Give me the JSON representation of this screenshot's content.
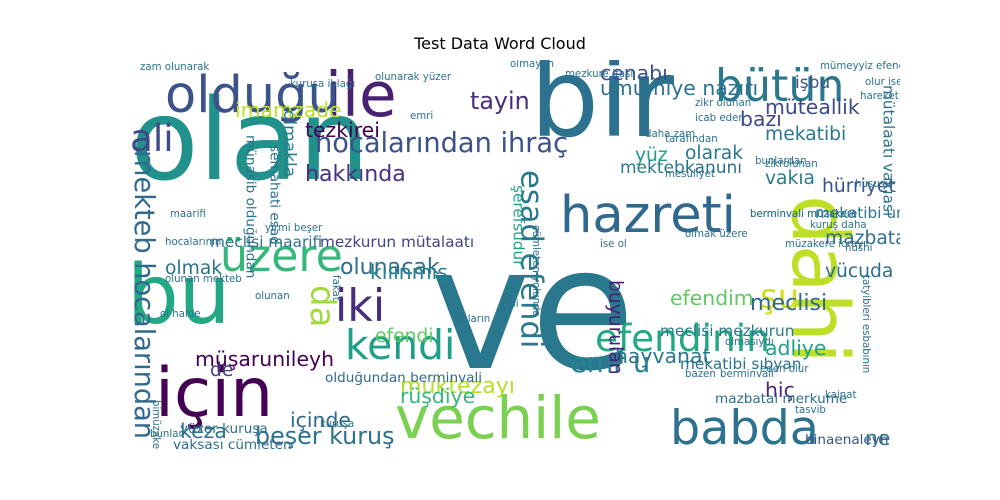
{
  "chart_data": {
    "type": "wordcloud",
    "title": "Test Data Word Cloud",
    "words": [
      {
        "text": "ve",
        "size": 100,
        "color": "#2a788e"
      },
      {
        "text": "olan",
        "size": 66,
        "color": "#21918c"
      },
      {
        "text": "bir",
        "size": 64,
        "color": "#2c728e"
      },
      {
        "text": "bu",
        "size": 48,
        "color": "#22a884"
      },
      {
        "text": "dahi",
        "size": 46,
        "color": "#bddf26"
      },
      {
        "text": "için",
        "size": 40,
        "color": "#440154"
      },
      {
        "text": "ile",
        "size": 36,
        "color": "#482173"
      },
      {
        "text": "vechile",
        "size": 34,
        "color": "#7ad151"
      },
      {
        "text": "olduğu",
        "size": 30,
        "color": "#3b528b"
      },
      {
        "text": "hazreti",
        "size": 30,
        "color": "#31688e"
      },
      {
        "text": "babda",
        "size": 28,
        "color": "#2c728e"
      },
      {
        "text": "iki",
        "size": 26,
        "color": "#472d7b"
      },
      {
        "text": "üzere",
        "size": 26,
        "color": "#35b779"
      },
      {
        "text": "bütün",
        "size": 26,
        "color": "#2a788e"
      },
      {
        "text": "kendi",
        "size": 24,
        "color": "#1f9e89"
      },
      {
        "text": "ali",
        "size": 22,
        "color": "#3e4989"
      },
      {
        "text": "efendinin",
        "size": 22,
        "color": "#22a884"
      },
      {
        "text": "esad efendi",
        "size": 18,
        "color": "#2a788e"
      },
      {
        "text": "da",
        "size": 20,
        "color": "#a0da39"
      },
      {
        "text": "şu",
        "size": 20,
        "color": "#d0e11c"
      },
      {
        "text": "mekteb hocalarından",
        "size": 16,
        "color": "#31688e"
      },
      {
        "text": "hocalarından ihraç",
        "size": 16,
        "color": "#3b528b"
      },
      {
        "text": "emr u",
        "size": 16,
        "color": "#26828e"
      },
      {
        "text": "tayin",
        "size": 14,
        "color": "#472d7b"
      },
      {
        "text": "beşer kuruş",
        "size": 14,
        "color": "#2c728e"
      },
      {
        "text": "hakkında",
        "size": 13,
        "color": "#46327e"
      },
      {
        "text": "olunacak",
        "size": 13,
        "color": "#2e6e8e"
      },
      {
        "text": "cenabı",
        "size": 12,
        "color": "#3b528b"
      },
      {
        "text": "umumiye nazırı",
        "size": 12,
        "color": "#2c728e"
      },
      {
        "text": "müteallik",
        "size": 12,
        "color": "#3e4989"
      },
      {
        "text": "bazı",
        "size": 12,
        "color": "#414487"
      },
      {
        "text": "mekatibi",
        "size": 11,
        "color": "#2a788e"
      },
      {
        "text": "tezkirei",
        "size": 12,
        "color": "#440154"
      },
      {
        "text": "imamzade",
        "size": 12,
        "color": "#bddf26"
      },
      {
        "text": "meclisi",
        "size": 13,
        "color": "#31688e"
      },
      {
        "text": "müşarunileyh",
        "size": 12,
        "color": "#440154"
      },
      {
        "text": "muktezayı",
        "size": 13,
        "color": "#b5de2b"
      },
      {
        "text": "rüşdiye",
        "size": 12,
        "color": "#35b779"
      },
      {
        "text": "hayvanat",
        "size": 12,
        "color": "#2a788e"
      },
      {
        "text": "efendim",
        "size": 12,
        "color": "#5ec962"
      },
      {
        "text": "hiç",
        "size": 12,
        "color": "#482878"
      },
      {
        "text": "adliye",
        "size": 12,
        "color": "#1f9e89"
      },
      {
        "text": "ne",
        "size": 12,
        "color": "#2a788e"
      },
      {
        "text": "keza",
        "size": 12,
        "color": "#2c728e"
      },
      {
        "text": "içinde",
        "size": 12,
        "color": "#31688e"
      },
      {
        "text": "kılınmış",
        "size": 12,
        "color": "#26828e"
      },
      {
        "text": "olmak",
        "size": 11,
        "color": "#2c728e"
      },
      {
        "text": "efendi",
        "size": 11,
        "color": "#5ec962"
      },
      {
        "text": "de",
        "size": 11,
        "color": "#443a83"
      },
      {
        "text": "buyurulan",
        "size": 11,
        "color": "#482173"
      },
      {
        "text": "mazbata",
        "size": 11,
        "color": "#2e6e8e"
      },
      {
        "text": "vücuda",
        "size": 11,
        "color": "#2e6e8e"
      },
      {
        "text": "hürriyet",
        "size": 11,
        "color": "#3b528b"
      },
      {
        "text": "vakıa",
        "size": 11,
        "color": "#287c8e"
      },
      {
        "text": "olarak",
        "size": 11,
        "color": "#2a788e"
      },
      {
        "text": "yüz",
        "size": 11,
        "color": "#1f9e89"
      },
      {
        "text": "kanunı",
        "size": 10,
        "color": "#2c728e"
      },
      {
        "text": "mektebi",
        "size": 10,
        "color": "#2a788e"
      },
      {
        "text": "işbu",
        "size": 10,
        "color": "#3b528b"
      },
      {
        "text": "olmakla",
        "size": 10,
        "color": "#287c8e"
      },
      {
        "text": "meclisi mezkurun",
        "size": 9,
        "color": "#2a788e"
      },
      {
        "text": "mekatibi sıbyan",
        "size": 9,
        "color": "#2c728e"
      },
      {
        "text": "meclisi maarifi",
        "size": 9,
        "color": "#2c728e"
      },
      {
        "text": "mezkurun mütalaatı",
        "size": 9,
        "color": "#414487"
      },
      {
        "text": "şerefsudur",
        "size": 9,
        "color": "#20a386"
      },
      {
        "text": "mekatibi umumiye",
        "size": 9,
        "color": "#2a788e"
      },
      {
        "text": "mütalaatı vakıası",
        "size": 9,
        "color": "#2c728e"
      },
      {
        "text": "semahati esad",
        "size": 8,
        "color": "#2c728e"
      },
      {
        "text": "münasib olduğundan",
        "size": 8,
        "color": "#2c728e"
      },
      {
        "text": "vaksası cümleten",
        "size": 8,
        "color": "#2e6e8e"
      },
      {
        "text": "yüzer kuruşa",
        "size": 8,
        "color": "#2e6e8e"
      },
      {
        "text": "olduğundan berminvali",
        "size": 8,
        "color": "#31688e"
      },
      {
        "text": "mazbatai merkume",
        "size": 8,
        "color": "#2e6e8e"
      },
      {
        "text": "binaenaleyh",
        "size": 8,
        "color": "#3b528b"
      },
      {
        "text": "zam olunarak",
        "size": 6,
        "color": "#2c728e"
      },
      {
        "text": "mümeyyiz efendilerin",
        "size": 6,
        "color": "#2c728e"
      },
      {
        "text": "kuruşa iblağı",
        "size": 6,
        "color": "#2c728e"
      },
      {
        "text": "olunarak yüzer",
        "size": 6,
        "color": "#2c728e"
      },
      {
        "text": "mezkure itası",
        "size": 6,
        "color": "#2c728e"
      },
      {
        "text": "daha zam",
        "size": 6,
        "color": "#2c728e"
      },
      {
        "text": "zikr olunan",
        "size": 6,
        "color": "#2c728e"
      },
      {
        "text": "icab eden",
        "size": 6,
        "color": "#2c728e"
      },
      {
        "text": "berminvali müzakere",
        "size": 6,
        "color": "#2c728e"
      },
      {
        "text": "olur ise",
        "size": 6,
        "color": "#2c728e"
      },
      {
        "text": "yirmi beşer",
        "size": 6,
        "color": "#2c728e"
      },
      {
        "text": "maarifi",
        "size": 6,
        "color": "#2c728e"
      },
      {
        "text": "ise ol",
        "size": 6,
        "color": "#2c728e"
      },
      {
        "text": "olunan mekteb",
        "size": 6,
        "color": "#2c728e"
      },
      {
        "text": "olmak üzere",
        "size": 6,
        "color": "#2c728e"
      },
      {
        "text": "kuruş daha",
        "size": 6,
        "color": "#2c728e"
      },
      {
        "text": "müzakere icrayı",
        "size": 6,
        "color": "#2c728e"
      },
      {
        "text": "bunlardan",
        "size": 6,
        "color": "#2c728e"
      },
      {
        "text": "hüsni",
        "size": 6,
        "color": "#2c728e"
      },
      {
        "text": "ol halde",
        "size": 6,
        "color": "#2c728e"
      },
      {
        "text": "olunan",
        "size": 6,
        "color": "#2c728e"
      },
      {
        "text": "eden olur",
        "size": 6,
        "color": "#2c728e"
      },
      {
        "text": "bazen",
        "size": 6,
        "color": "#2c728e"
      },
      {
        "text": "kainat",
        "size": 6,
        "color": "#2c728e"
      },
      {
        "text": "tasvib",
        "size": 6,
        "color": "#2c728e"
      },
      {
        "text": "hocalarının",
        "size": 6,
        "color": "#2c728e"
      },
      {
        "text": "bimüzakere istihsali",
        "size": 6,
        "color": "#2c728e"
      },
      {
        "text": "cümleten yolunda",
        "size": 6,
        "color": "#2c728e"
      },
      {
        "text": "zikrolunan",
        "size": 6,
        "color": "#2c728e"
      },
      {
        "text": "hareket",
        "size": 6,
        "color": "#2c728e"
      },
      {
        "text": "hususu",
        "size": 6,
        "color": "#2c728e"
      },
      {
        "text": "berminvali",
        "size": 6,
        "color": "#2c728e"
      },
      {
        "text": "tatyibleri esbabının",
        "size": 6,
        "color": "#2c728e"
      },
      {
        "text": "kuruşa",
        "size": 6,
        "color": "#2c728e"
      },
      {
        "text": "bunlar",
        "size": 6,
        "color": "#2c728e"
      },
      {
        "text": "olmasıydı",
        "size": 6,
        "color": "#2c728e"
      },
      {
        "text": "berminvali müzakere",
        "size": 6,
        "color": "#2c728e"
      },
      {
        "text": "tarafından",
        "size": 6,
        "color": "#2c728e"
      },
      {
        "text": "olmayan",
        "size": 6,
        "color": "#2c728e"
      },
      {
        "text": "mesuliyet",
        "size": 6,
        "color": "#2c728e"
      },
      {
        "text": "emri",
        "size": 6,
        "color": "#2c728e"
      },
      {
        "text": "fakat",
        "size": 6,
        "color": "#2c728e"
      },
      {
        "text": "onların",
        "size": 6,
        "color": "#2c728e"
      },
      {
        "text": "gibi",
        "size": 6,
        "color": "#2c728e"
      }
    ]
  }
}
